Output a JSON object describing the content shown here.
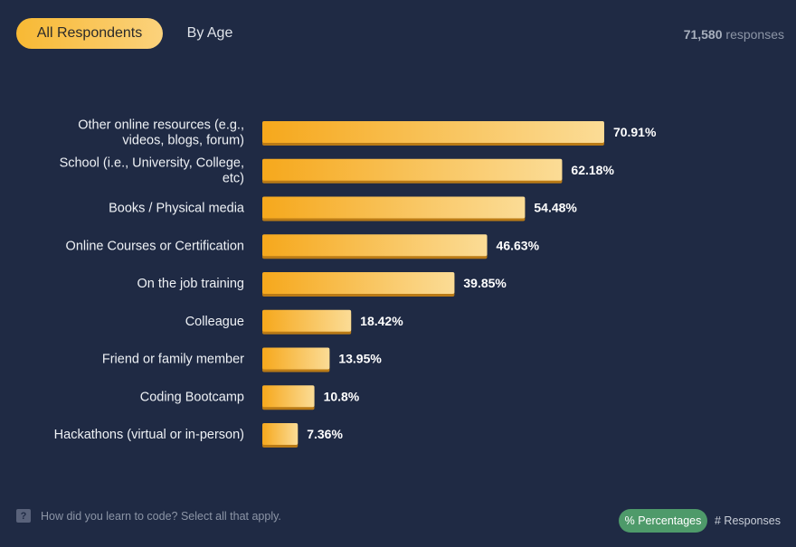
{
  "tabs": {
    "active": "All Respondents",
    "inactive": "By Age"
  },
  "responses": {
    "count": "71,580",
    "label": "responses"
  },
  "chart_data": {
    "type": "bar",
    "orientation": "horizontal",
    "categories": [
      [
        "Other online resources (e.g.,",
        "videos, blogs, forum)"
      ],
      [
        "School (i.e., University, College,",
        "etc)"
      ],
      [
        "Books / Physical media"
      ],
      [
        "Online Courses or Certification"
      ],
      [
        "On the job training"
      ],
      [
        "Colleague"
      ],
      [
        "Friend or family member"
      ],
      [
        "Coding Bootcamp"
      ],
      [
        "Hackathons (virtual or in-person)"
      ]
    ],
    "values": [
      70.91,
      62.18,
      54.48,
      46.63,
      39.85,
      18.42,
      13.95,
      10.8,
      7.36
    ],
    "value_labels": [
      "70.91%",
      "62.18%",
      "54.48%",
      "46.63%",
      "39.85%",
      "18.42%",
      "13.95%",
      "10.8%",
      "7.36%"
    ],
    "xlim": [
      0,
      100
    ],
    "bar_colors": {
      "start": "#f6a81c",
      "end": "#fbdc96",
      "shadow": "#b97a16"
    }
  },
  "footer": {
    "question": "How did you learn to code? Select all that apply.",
    "question_icon": "?",
    "toggle_percentages": "% Percentages",
    "toggle_responses": "# Responses"
  }
}
